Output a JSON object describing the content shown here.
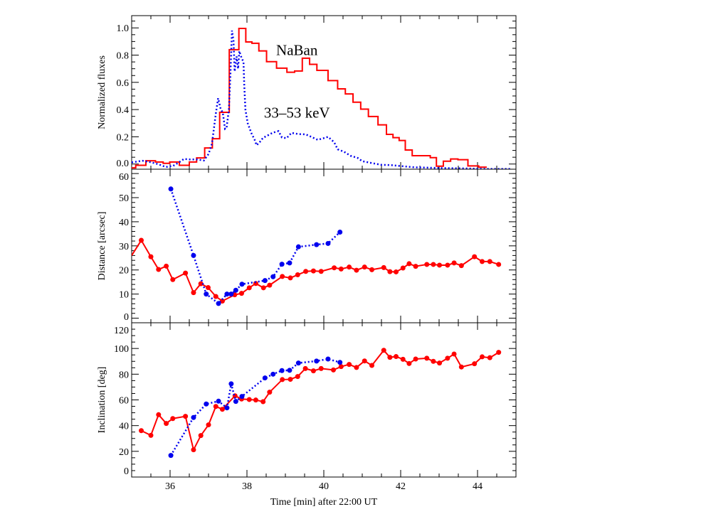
{
  "chart_data": {
    "type": "line",
    "xlabel": "Time [min] after 22:00 UT",
    "xlim": [
      35,
      45
    ],
    "xticks": [
      36,
      38,
      40,
      42,
      44
    ],
    "xminor": 0.5,
    "colors": {
      "red": "#ff0000",
      "blue": "#0000ee"
    },
    "panels": [
      {
        "name": "fluxes",
        "ylabel": "Normalized fluxes",
        "ylim": [
          -0.038,
          1.09
        ],
        "yticks": [
          0.0,
          0.2,
          0.4,
          0.6,
          0.8,
          1.0
        ],
        "ytick_labels": [
          "0.0",
          "0.2",
          "0.4",
          "0.6",
          "0.8",
          "1.0"
        ],
        "yminor": 0.05,
        "annotations": [
          {
            "text": "NaBan",
            "x": 39.3,
            "y": 0.8
          },
          {
            "text": "33–53 keV",
            "x": 39.3,
            "y": 0.34
          }
        ],
        "series": [
          {
            "name": "NaBan",
            "style": "step",
            "color": "red",
            "edges": [
              35.0,
              35.105,
              35.37,
              35.62,
              35.82,
              35.99,
              36.24,
              36.5,
              36.69,
              36.9,
              37.1,
              37.29,
              37.54,
              37.79,
              37.97,
              38.13,
              38.31,
              38.51,
              38.77,
              39.04,
              39.24,
              39.44,
              39.63,
              39.82,
              40.11,
              40.36,
              40.56,
              40.76,
              40.96,
              41.16,
              41.41,
              41.63,
              41.8,
              41.96,
              42.12,
              42.3,
              42.77,
              42.93,
              43.11,
              43.3,
              43.49,
              43.75,
              44.03,
              44.24
            ],
            "values": [
              -0.028,
              -0.009,
              0.024,
              0.015,
              0.005,
              0.015,
              -0.009,
              0.015,
              0.045,
              0.118,
              0.186,
              0.38,
              0.84,
              0.996,
              0.897,
              0.887,
              0.831,
              0.752,
              0.704,
              0.674,
              0.683,
              0.777,
              0.732,
              0.688,
              0.613,
              0.552,
              0.515,
              0.454,
              0.403,
              0.349,
              0.288,
              0.218,
              0.194,
              0.173,
              0.103,
              0.061,
              0.047,
              -0.016,
              0.021,
              0.037,
              0.032,
              -0.014,
              -0.023
            ]
          },
          {
            "name": "33–53 keV",
            "style": "dotted",
            "color": "blue",
            "x": [
              35.0,
              35.28,
              35.52,
              35.71,
              35.89,
              36.08,
              36.23,
              36.36,
              36.51,
              36.69,
              36.88,
              37.0,
              37.09,
              37.19,
              37.25,
              37.32,
              37.37,
              37.43,
              37.47,
              37.53,
              37.57,
              37.61,
              37.65,
              37.68,
              37.73,
              37.77,
              37.8,
              37.86,
              37.91,
              37.93,
              37.96,
              38.02,
              38.11,
              38.2,
              38.25,
              38.33,
              38.42,
              38.54,
              38.67,
              38.82,
              38.91,
              39.03,
              39.16,
              39.34,
              39.53,
              39.71,
              39.84,
              40.0,
              40.11,
              40.27,
              40.36,
              40.52,
              40.7,
              40.88,
              41.0,
              41.25,
              41.5,
              41.75,
              42.0,
              42.36,
              42.98,
              43.6,
              44.21,
              44.89
            ],
            "y": [
              0.012,
              0.024,
              0.012,
              -0.003,
              -0.022,
              -0.013,
              0.012,
              0.037,
              0.034,
              0.034,
              0.026,
              0.073,
              0.15,
              0.37,
              0.483,
              0.4,
              0.38,
              0.258,
              0.265,
              0.4,
              0.66,
              0.98,
              0.91,
              0.68,
              0.79,
              0.7,
              0.83,
              0.78,
              0.75,
              0.578,
              0.4,
              0.3,
              0.23,
              0.178,
              0.138,
              0.16,
              0.193,
              0.21,
              0.23,
              0.242,
              0.195,
              0.19,
              0.229,
              0.22,
              0.218,
              0.195,
              0.178,
              0.19,
              0.2,
              0.16,
              0.108,
              0.091,
              0.06,
              0.045,
              0.021,
              0.007,
              -0.006,
              -0.008,
              -0.015,
              -0.024,
              -0.029,
              -0.032,
              -0.036,
              -0.036
            ]
          }
        ]
      },
      {
        "name": "distance",
        "ylabel": "Distance [arcsec]",
        "ylim": [
          -1.9,
          61.8
        ],
        "yticks": [
          0,
          10,
          20,
          30,
          40,
          50,
          60
        ],
        "ytick_labels": [
          "0",
          "10",
          "20",
          "30",
          "40",
          "50",
          "60"
        ],
        "yminor": 2,
        "series": [
          {
            "name": "red",
            "style": "solid-markers",
            "color": "red",
            "x": [
              35.0,
              35.25,
              35.5,
              35.7,
              35.9,
              36.07,
              36.4,
              36.61,
              36.8,
              36.99,
              37.19,
              37.36,
              37.68,
              37.86,
              38.06,
              38.23,
              38.43,
              38.59,
              38.92,
              39.13,
              39.32,
              39.53,
              39.73,
              39.93,
              40.27,
              40.45,
              40.66,
              40.85,
              41.06,
              41.25,
              41.56,
              41.72,
              41.88,
              42.06,
              42.22,
              42.39,
              42.68,
              42.85,
              43.01,
              43.22,
              43.39,
              43.58,
              43.92,
              44.12,
              44.32,
              44.55
            ],
            "y": [
              26.0,
              32.3,
              25.5,
              20.2,
              21.6,
              16.0,
              18.7,
              10.6,
              14.3,
              12.7,
              9.0,
              7.1,
              9.7,
              10.3,
              12.6,
              14.4,
              12.6,
              13.7,
              17.3,
              16.7,
              18.0,
              19.4,
              19.6,
              19.4,
              20.9,
              20.4,
              21.2,
              19.9,
              21.2,
              20.1,
              21.0,
              19.3,
              19.2,
              20.8,
              22.6,
              21.5,
              22.3,
              22.3,
              22.0,
              22.0,
              22.9,
              21.8,
              25.5,
              23.5,
              23.5,
              22.3
            ],
            "markers_from_index": 1
          },
          {
            "name": "blue",
            "style": "dotted-markers",
            "color": "blue",
            "x": [
              36.02,
              36.61,
              36.94,
              37.26,
              37.48,
              37.59,
              37.71,
              37.87,
              38.47,
              38.68,
              38.91,
              39.11,
              39.34,
              39.81,
              40.11,
              40.42
            ],
            "y": [
              53.6,
              26.0,
              10.0,
              6.1,
              10.0,
              10.0,
              11.6,
              14.1,
              15.6,
              17.2,
              22.4,
              22.9,
              29.6,
              30.5,
              31.0,
              35.7
            ],
            "markers_from_index": 0
          }
        ]
      },
      {
        "name": "inclination",
        "ylabel": "Inclination [deg]",
        "ylim": [
          0,
          120
        ],
        "yticks": [
          0,
          20,
          40,
          60,
          80,
          100,
          120
        ],
        "ytick_labels": [
          "0",
          "20",
          "40",
          "60",
          "80",
          "100",
          "120"
        ],
        "yminor": 5,
        "series": [
          {
            "name": "red",
            "style": "solid-markers",
            "color": "red",
            "x": [
              35.25,
              35.5,
              35.7,
              35.9,
              36.07,
              36.4,
              36.61,
              36.8,
              37.0,
              37.19,
              37.36,
              37.69,
              37.86,
              38.06,
              38.23,
              38.42,
              38.59,
              38.92,
              39.13,
              39.32,
              39.52,
              39.73,
              39.93,
              40.25,
              40.45,
              40.66,
              40.85,
              41.06,
              41.25,
              41.56,
              41.72,
              41.88,
              42.06,
              42.22,
              42.39,
              42.68,
              42.85,
              43.01,
              43.22,
              43.39,
              43.58,
              43.92,
              44.12,
              44.32,
              44.55
            ],
            "y": [
              36.1,
              32.4,
              48.5,
              41.7,
              45.5,
              47.2,
              21.2,
              32.3,
              40.6,
              54.9,
              52.7,
              63.2,
              60.7,
              60.3,
              59.9,
              58.6,
              66.0,
              75.8,
              76.0,
              78.2,
              84.4,
              82.6,
              84.4,
              83.3,
              85.9,
              87.6,
              85.2,
              90.3,
              86.8,
              98.6,
              93.1,
              93.7,
              91.6,
              88.3,
              91.8,
              92.4,
              90.0,
              88.7,
              92.4,
              95.7,
              85.6,
              88.1,
              93.5,
              92.8,
              97.0
            ],
            "markers_from_index": 0
          },
          {
            "name": "blue",
            "style": "dotted-markers",
            "color": "blue",
            "x": [
              36.02,
              36.61,
              36.94,
              37.26,
              37.48,
              37.59,
              37.71,
              37.87,
              38.47,
              38.68,
              38.91,
              39.11,
              39.34,
              39.81,
              40.11,
              40.42
            ],
            "y": [
              16.8,
              46.3,
              56.8,
              59.0,
              53.8,
              72.5,
              58.8,
              62.7,
              77.1,
              80.0,
              82.8,
              83.0,
              88.7,
              90.2,
              91.8,
              89.2
            ],
            "markers_from_index": 0
          }
        ]
      }
    ]
  }
}
